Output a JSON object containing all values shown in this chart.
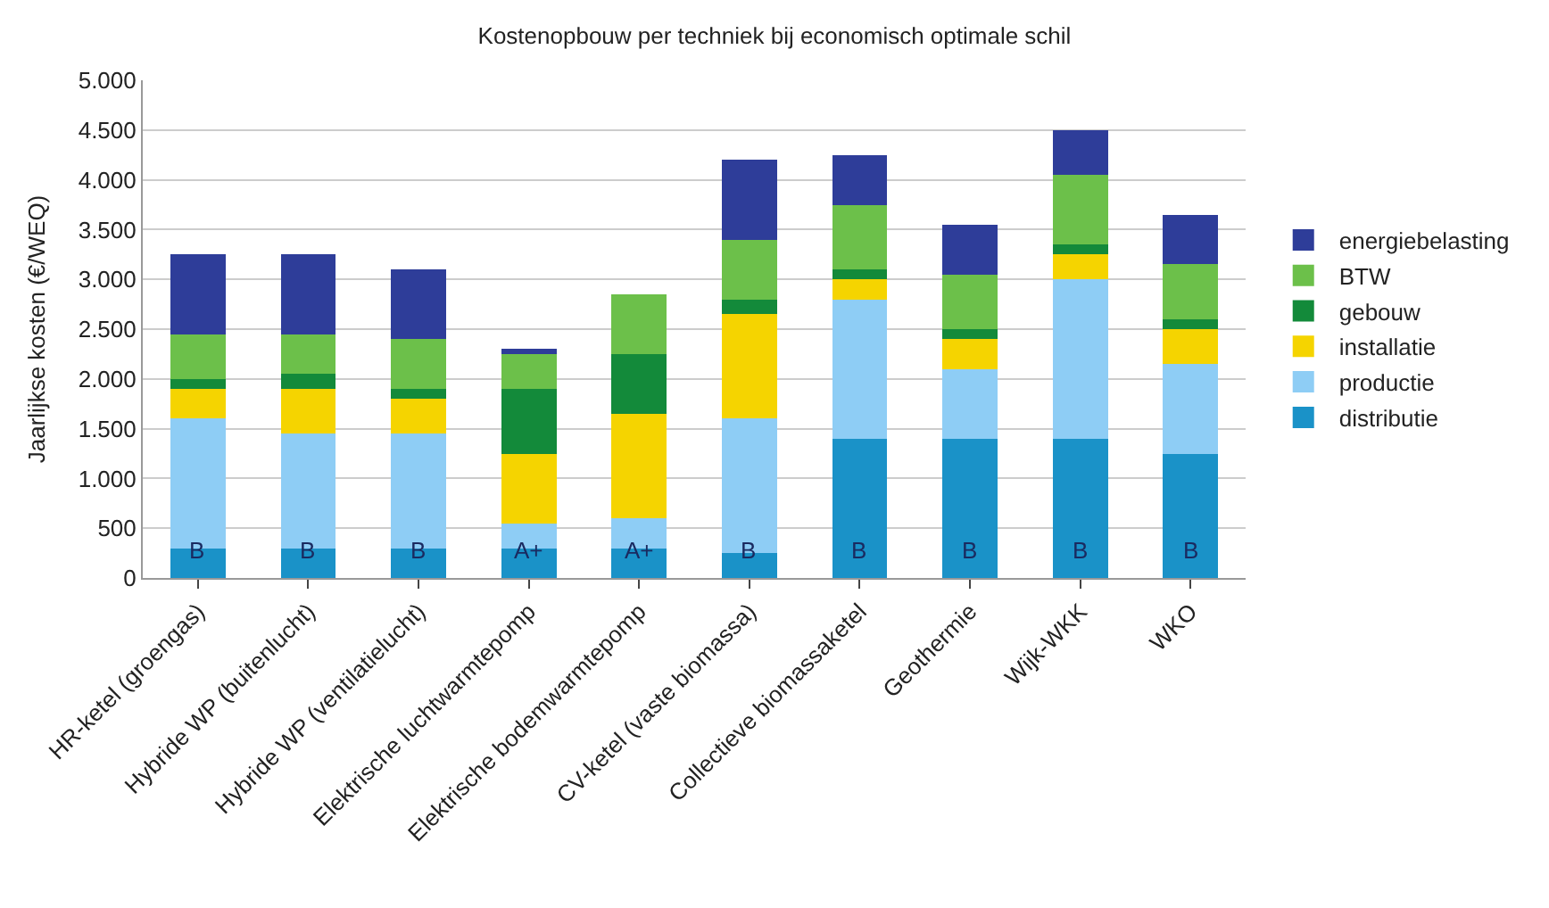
{
  "chart_data": {
    "type": "bar",
    "stacked": true,
    "title": "Kostenopbouw per techniek bij economisch optimale schil",
    "ylabel": "Jaarlijkse kosten (€/WEQ)",
    "categories": [
      "HR-ketel (groengas)",
      "Hybride WP (buitenlucht)",
      "Hybride WP (ventilatielucht)",
      "Elektrische luchtwarmtepomp",
      "Elektrische bodemwarmtepomp",
      "CV-ketel (vaste biomassa)",
      "Collectieve biomassaketel",
      "Geothermie",
      "Wijk-WKK",
      "WKO"
    ],
    "series": [
      {
        "name": "distributie",
        "color": "#1a92c8",
        "values": [
          300,
          300,
          300,
          300,
          300,
          250,
          1400,
          1400,
          1400,
          1250
        ]
      },
      {
        "name": "productie",
        "color": "#8ecdf5",
        "values": [
          1300,
          1150,
          1150,
          250,
          300,
          1350,
          1400,
          700,
          1600,
          900
        ]
      },
      {
        "name": "installatie",
        "color": "#f5d400",
        "values": [
          300,
          450,
          350,
          700,
          1050,
          1050,
          200,
          300,
          250,
          350
        ]
      },
      {
        "name": "gebouw",
        "color": "#138a3a",
        "values": [
          100,
          150,
          100,
          650,
          600,
          150,
          100,
          100,
          100,
          100
        ]
      },
      {
        "name": "BTW",
        "color": "#6cc04a",
        "values": [
          450,
          400,
          500,
          350,
          600,
          600,
          650,
          550,
          700,
          550
        ]
      },
      {
        "name": "energiebelasting",
        "color": "#2e3d99",
        "values": [
          800,
          800,
          700,
          50,
          0,
          800,
          500,
          500,
          450,
          500
        ]
      }
    ],
    "annotations": [
      "B",
      "B",
      "B",
      "A+",
      "A+",
      "B",
      "B",
      "B",
      "B",
      "B"
    ],
    "ylim": [
      0,
      5000
    ],
    "yticks": [
      {
        "value": 0,
        "label": "0"
      },
      {
        "value": 500,
        "label": "500"
      },
      {
        "value": 1000,
        "label": "1.000"
      },
      {
        "value": 1500,
        "label": "1.500"
      },
      {
        "value": 2000,
        "label": "2.000"
      },
      {
        "value": 2500,
        "label": "2.500"
      },
      {
        "value": 3000,
        "label": "3.000"
      },
      {
        "value": 3500,
        "label": "3.500"
      },
      {
        "value": 4000,
        "label": "4.000"
      },
      {
        "value": 4500,
        "label": "4.500"
      },
      {
        "value": 5000,
        "label": "5.000"
      }
    ],
    "grid": "y",
    "legend": "right"
  }
}
